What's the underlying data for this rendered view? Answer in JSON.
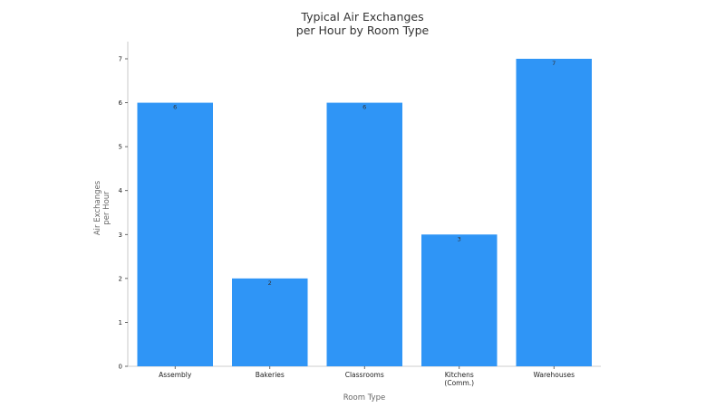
{
  "chart_data": {
    "type": "bar",
    "title": [
      "Typical Air Exchanges",
      "per Hour by Room Type"
    ],
    "xlabel": "Room Type",
    "ylabel": [
      "Air Exchanges",
      "per Hour"
    ],
    "categories": [
      [
        "Assembly"
      ],
      [
        "Bakeries"
      ],
      [
        "Classrooms"
      ],
      [
        "Kitchens",
        "(Comm.)"
      ],
      [
        "Warehouses"
      ]
    ],
    "values": [
      6,
      2,
      6,
      3,
      7
    ],
    "data_labels": [
      "6",
      "2",
      "6",
      "3",
      "7"
    ],
    "ylim": [
      0,
      7
    ],
    "yticks": [
      0,
      1,
      2,
      3,
      4,
      5,
      6,
      7
    ],
    "bar_color": "#2f95f6",
    "grid": false,
    "legend": "none"
  }
}
